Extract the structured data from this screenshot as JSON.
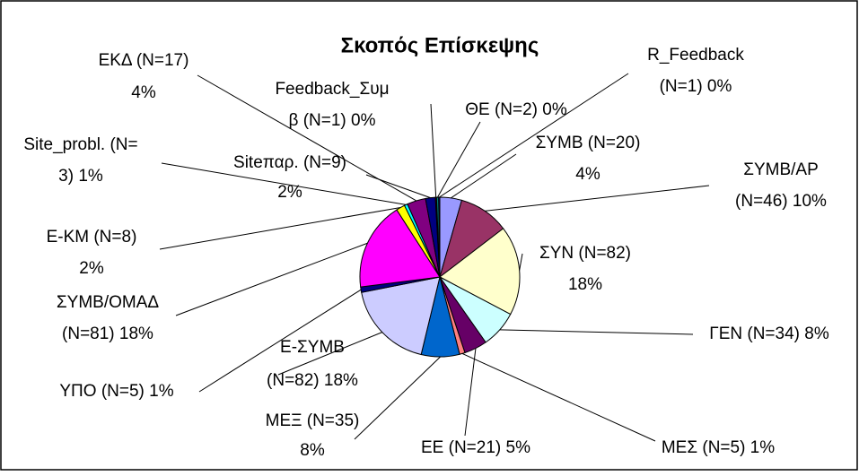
{
  "chart_data": {
    "type": "pie",
    "title": "Σκοπός Επίσκεψης",
    "categories": [
      "ΣΥΜΒ",
      "ΣΥΜΒ/ΑΡ",
      "ΣΥΝ",
      "ΓΕΝ",
      "ΕΕ",
      "ΜΕΣ",
      "ΜΕΞ",
      "Ε-ΣΥΜΒ",
      "ΥΠΟ",
      "ΣΥΜΒ/ΟΜΑΔ",
      "Ε-ΚΜ",
      "Site_probl.",
      "ΕΚΔ",
      "Siteπαρ.",
      "Feedback_Συμβ",
      "ΘΕ",
      "R_Feedback"
    ],
    "values": [
      20,
      46,
      82,
      34,
      21,
      5,
      35,
      82,
      5,
      81,
      8,
      3,
      17,
      9,
      1,
      2,
      1
    ],
    "value_labels": [
      [
        "ΣΥΜΒ (N=20)",
        "4%"
      ],
      [
        "ΣΥΜΒ/ΑΡ",
        "(N=46) 10%"
      ],
      [
        "ΣΥΝ (N=82)",
        "18%"
      ],
      [
        "ΓΕΝ (N=34) 8%"
      ],
      [
        "ΕΕ (N=21) 5%"
      ],
      [
        "ΜΕΣ (N=5) 1%"
      ],
      [
        "ΜΕΞ (N=35)",
        "8%"
      ],
      [
        "Ε-ΣΥΜΒ",
        "(N=82) 18%"
      ],
      [
        "ΥΠΟ (N=5) 1%"
      ],
      [
        "ΣΥΜΒ/ΟΜΑΔ",
        "(N=81) 18%"
      ],
      [
        "Ε-ΚΜ (N=8)",
        "2%"
      ],
      [
        "Site_probl. (N=",
        "3) 1%"
      ],
      [
        "ΕΚΔ (N=17)",
        "4%"
      ],
      [
        "Siteπαρ. (N=9)",
        "2%"
      ],
      [
        "Feedback_Συμ",
        "β (N=1) 0%"
      ],
      [
        "ΘΕ (N=2) 0%"
      ],
      [
        "R_Feedback",
        "(N=1) 0%"
      ]
    ],
    "colors": [
      "#9999ff",
      "#993366",
      "#ffffcc",
      "#ccffff",
      "#660066",
      "#ff8080",
      "#0066cc",
      "#ccccff",
      "#000080",
      "#ff00ff",
      "#ffff00",
      "#00ffff",
      "#800080",
      "#000080",
      "#800000",
      "#008080",
      "#0000ff"
    ]
  }
}
